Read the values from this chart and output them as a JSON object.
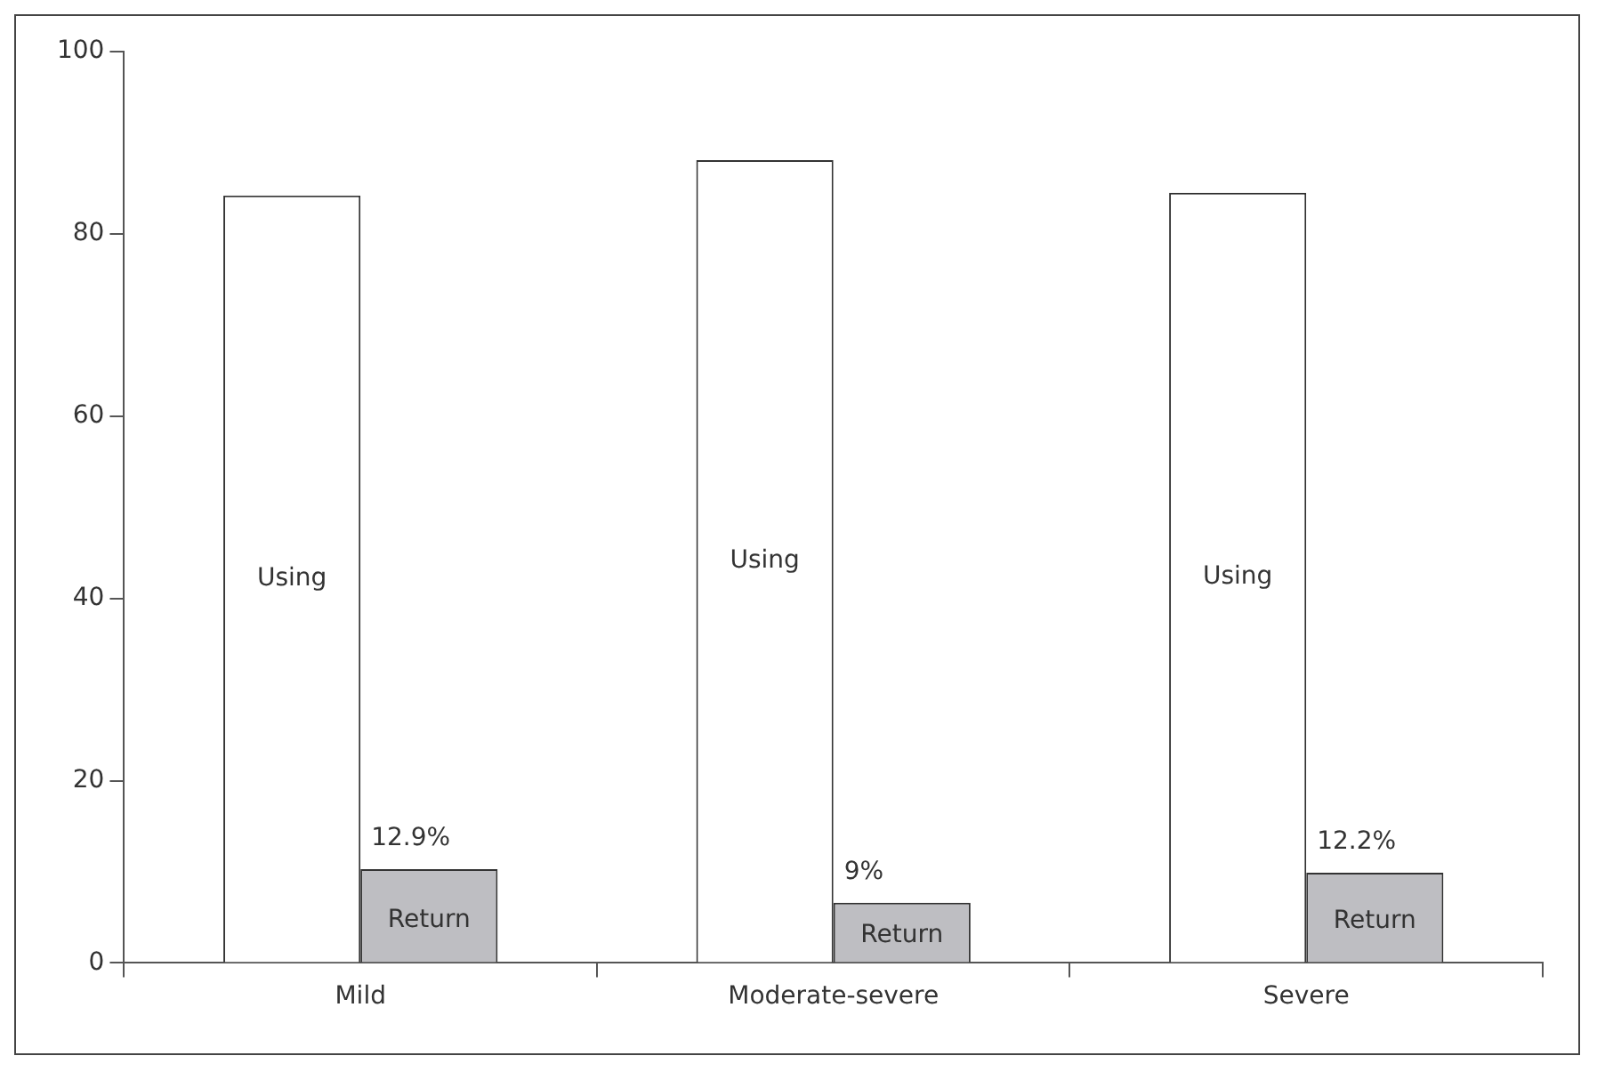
{
  "chart_data": {
    "type": "bar",
    "categories": [
      "Mild",
      "Moderate-severe",
      "Severe"
    ],
    "series": [
      {
        "name": "Using",
        "color": "#ffffff",
        "values": [
          84.2,
          88.1,
          84.5
        ]
      },
      {
        "name": "Return",
        "color": "#bebec2",
        "values": [
          10.3,
          6.6,
          9.9
        ]
      }
    ],
    "annotations": [
      {
        "text": "12.9%",
        "x": "Mild",
        "y": 10.3
      },
      {
        "text": "9%",
        "x": "Moderate-severe",
        "y": 6.6
      },
      {
        "text": "12.2%",
        "x": "Severe",
        "y": 9.9
      }
    ],
    "ylim": [
      0,
      100
    ],
    "yticks": [
      0,
      20,
      40,
      60,
      80,
      100
    ],
    "grid": false,
    "legend": false
  }
}
